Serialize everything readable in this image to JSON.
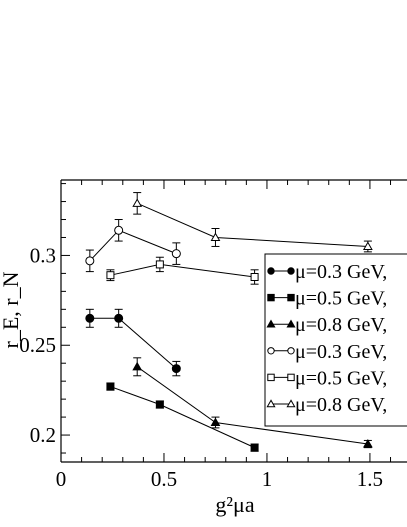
{
  "chart_data": {
    "type": "scatter",
    "xlabel": "g²μa",
    "ylabel": "r_E, r_N",
    "xlim": [
      0,
      1.68
    ],
    "ylim": [
      0.185,
      0.342
    ],
    "x_ticks": [
      0,
      0.5,
      1,
      1.5
    ],
    "x_tick_labels": [
      "0",
      "0.5",
      "1",
      "1.5"
    ],
    "y_ticks": [
      0.2,
      0.25,
      0.3
    ],
    "y_tick_labels": [
      "0.2",
      "0.25",
      "0.3"
    ],
    "grid": false,
    "legend_position": "right",
    "series": [
      {
        "name": "μ=0.3 GeV,",
        "marker": "circle",
        "filled": true,
        "points": [
          {
            "x": 0.14,
            "y": 0.265,
            "err": 0.005
          },
          {
            "x": 0.28,
            "y": 0.265,
            "err": 0.005
          },
          {
            "x": 0.56,
            "y": 0.237,
            "err": 0.004
          }
        ]
      },
      {
        "name": "μ=0.5 GeV,",
        "marker": "square",
        "filled": true,
        "points": [
          {
            "x": 0.24,
            "y": 0.227,
            "err": 0.002
          },
          {
            "x": 0.48,
            "y": 0.217,
            "err": 0.002
          },
          {
            "x": 0.94,
            "y": 0.193,
            "err": 0.002
          }
        ]
      },
      {
        "name": "μ=0.8 GeV,",
        "marker": "triangle",
        "filled": true,
        "points": [
          {
            "x": 0.37,
            "y": 0.238,
            "err": 0.005
          },
          {
            "x": 0.75,
            "y": 0.207,
            "err": 0.003
          },
          {
            "x": 1.49,
            "y": 0.195,
            "err": 0.002
          }
        ]
      },
      {
        "name": "μ=0.3 GeV,",
        "marker": "circle",
        "filled": false,
        "points": [
          {
            "x": 0.14,
            "y": 0.297,
            "err": 0.006
          },
          {
            "x": 0.28,
            "y": 0.314,
            "err": 0.006
          },
          {
            "x": 0.56,
            "y": 0.301,
            "err": 0.006
          }
        ]
      },
      {
        "name": "μ=0.5 GeV,",
        "marker": "square",
        "filled": false,
        "points": [
          {
            "x": 0.24,
            "y": 0.289,
            "err": 0.003
          },
          {
            "x": 0.48,
            "y": 0.295,
            "err": 0.004
          },
          {
            "x": 0.94,
            "y": 0.288,
            "err": 0.004
          }
        ]
      },
      {
        "name": "μ=0.8 GeV,",
        "marker": "triangle",
        "filled": false,
        "points": [
          {
            "x": 0.37,
            "y": 0.329,
            "err": 0.006
          },
          {
            "x": 0.75,
            "y": 0.31,
            "err": 0.005
          },
          {
            "x": 1.49,
            "y": 0.305,
            "err": 0.003
          }
        ]
      }
    ]
  }
}
